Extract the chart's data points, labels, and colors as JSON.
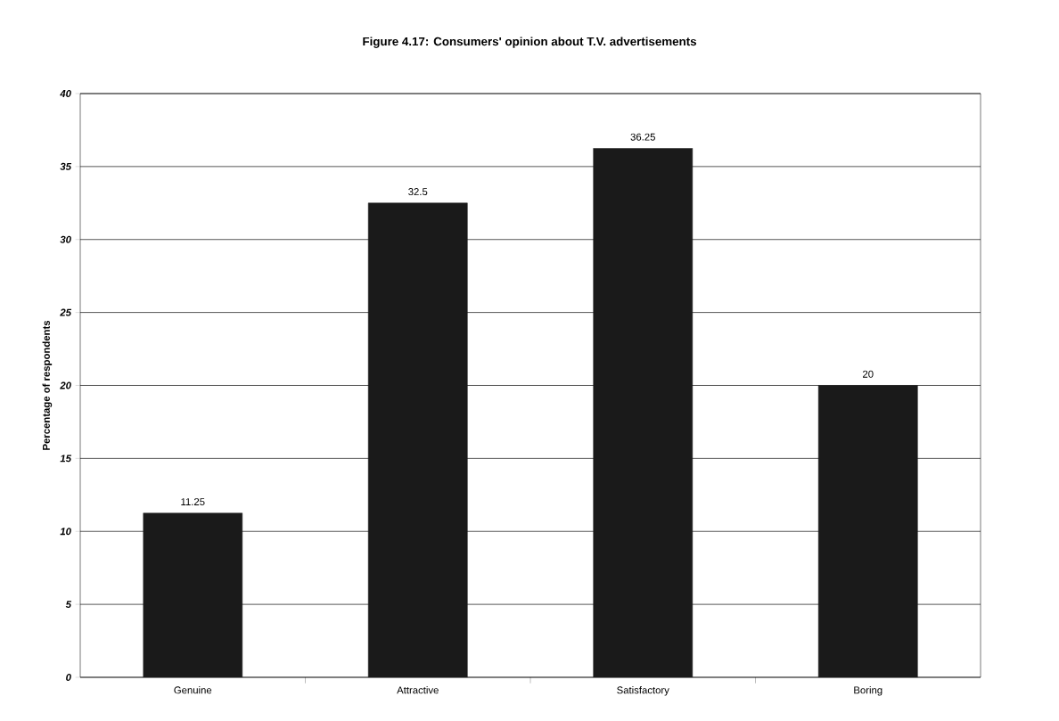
{
  "chart_data": {
    "type": "bar",
    "title": "Figure 4.17: Consumers' opinion about T.V. advertisements",
    "ylabel": "Percentage of respondents",
    "categories": [
      "Genuine",
      "Attractive",
      "Satisfactory",
      "Boring"
    ],
    "values": [
      11.25,
      32.5,
      36.25,
      20
    ],
    "value_labels": [
      "11.25",
      "32.5",
      "36.25",
      "20"
    ],
    "color": "#1a1a1a",
    "ylim": [
      0,
      40
    ],
    "yticks": [
      0,
      5,
      10,
      15,
      20,
      25,
      30,
      35,
      40
    ],
    "grid": "y"
  }
}
